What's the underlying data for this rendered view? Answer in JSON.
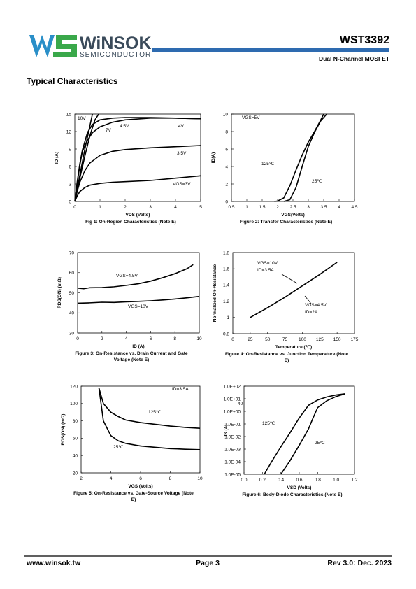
{
  "header": {
    "logo_name": "WiNSOK",
    "logo_sub": "SEMICONDUCTOR",
    "part": "WST3392",
    "subtitle": "Dual N-Channel MOSFET"
  },
  "section_title": "Typical Characteristics",
  "chart_data": [
    {
      "type": "line",
      "title": "Fig 1: On-Region Characteristics (Note E)",
      "x_label": "VDS (Volts)",
      "y_label": "ID (A)",
      "xlim": [
        0,
        5
      ],
      "ylim": [
        0,
        15
      ],
      "xticks": [
        0,
        1,
        2,
        3,
        4,
        5
      ],
      "yticks": [
        0,
        3,
        6,
        9,
        12,
        15
      ],
      "series": [
        {
          "name": "10V",
          "color": "#000000",
          "x": [
            0,
            0.2,
            0.4,
            0.6,
            0.7
          ],
          "values": [
            0,
            4.5,
            9,
            13,
            15
          ]
        },
        {
          "name": "7V",
          "color": "#000000",
          "x": [
            0,
            0.2,
            0.4,
            0.6,
            0.8,
            0.95
          ],
          "values": [
            0,
            4,
            7.8,
            11.3,
            14,
            15
          ]
        },
        {
          "name": "4.5V",
          "color": "#000000",
          "x": [
            0,
            0.1,
            0.2,
            0.3,
            0.5,
            0.7,
            1,
            1.5,
            2,
            3,
            4,
            5
          ],
          "values": [
            0,
            3.5,
            6.5,
            8.8,
            11.8,
            13.2,
            14,
            14.3,
            14.4,
            14.4,
            14.3,
            14.2
          ]
        },
        {
          "name": "4V",
          "color": "#000000",
          "x": [
            0,
            0.1,
            0.2,
            0.3,
            0.5,
            0.7,
            1,
            1.5,
            2,
            3,
            4,
            5
          ],
          "values": [
            0,
            3.3,
            6.2,
            8.6,
            10.5,
            11.8,
            12.8,
            13.6,
            14,
            14.3,
            14.3,
            14.2
          ]
        },
        {
          "name": "3.5V",
          "color": "#000000",
          "x": [
            0,
            0.1,
            0.2,
            0.4,
            0.6,
            1,
            1.5,
            2,
            3,
            4,
            5
          ],
          "values": [
            0,
            1.8,
            3.3,
            5.3,
            6.6,
            7.9,
            8.6,
            8.9,
            9.2,
            9.4,
            9.6
          ]
        },
        {
          "name": "VGS=3V",
          "color": "#000000",
          "x": [
            0,
            0.1,
            0.2,
            0.4,
            0.6,
            1,
            1.5,
            2,
            3,
            4,
            5
          ],
          "values": [
            0,
            1,
            1.7,
            2.4,
            2.8,
            3.1,
            3.3,
            3.4,
            3.6,
            4,
            4.4
          ]
        }
      ]
    },
    {
      "type": "line",
      "title": "Figure 2: Transfer Characteristics (Note E)",
      "x_label": "VGS(Volts)",
      "y_label": "ID(A)",
      "xlim": [
        0.5,
        4.5
      ],
      "ylim": [
        0,
        10
      ],
      "xticks": [
        0.5,
        1,
        1.5,
        2,
        2.5,
        3,
        3.5,
        4,
        4.5
      ],
      "yticks": [
        0,
        2,
        4,
        6,
        8,
        10
      ],
      "annotations": [
        "VGS=5V"
      ],
      "series": [
        {
          "name": "125℃",
          "color": "#000000",
          "x": [
            1.9,
            2,
            2.2,
            2.4,
            2.6,
            2.8,
            3,
            3.2,
            3.4,
            3.5
          ],
          "values": [
            0,
            0.05,
            0.4,
            1.8,
            3.6,
            5.3,
            6.8,
            8,
            9.3,
            10
          ]
        },
        {
          "name": "25℃",
          "color": "#000000",
          "x": [
            2.2,
            2.4,
            2.6,
            2.8,
            3,
            3.2,
            3.4,
            3.6
          ],
          "values": [
            0,
            0.2,
            1.6,
            4,
            6.3,
            7.9,
            9.2,
            10
          ]
        }
      ]
    },
    {
      "type": "line",
      "title": "Figure 3: On-Resistance vs. Drain Current and Gate Voltage (Note E)",
      "x_label": "ID (A)",
      "y_label": "RDS(ON) (mΩ)",
      "xlim": [
        0,
        10
      ],
      "ylim": [
        30,
        70
      ],
      "xticks": [
        0,
        2,
        4,
        6,
        8,
        10
      ],
      "yticks": [
        30,
        40,
        50,
        60,
        70
      ],
      "series": [
        {
          "name": "VGS=4.5V",
          "color": "#000000",
          "x": [
            0,
            0.5,
            1,
            2,
            3,
            4,
            5,
            6,
            7,
            8,
            9,
            9.5
          ],
          "values": [
            52.3,
            52,
            52.5,
            52.6,
            53,
            53.7,
            54.5,
            55.8,
            57.5,
            59.5,
            62,
            64
          ]
        },
        {
          "name": "VGS=10V",
          "color": "#000000",
          "x": [
            0,
            1,
            2,
            3,
            4,
            5,
            6,
            7,
            8,
            9,
            10
          ],
          "values": [
            44.8,
            45,
            45.3,
            45.2,
            45.5,
            45.7,
            46,
            46.4,
            46.9,
            47.5,
            48.2
          ]
        }
      ]
    },
    {
      "type": "line",
      "title": "Figure 4: On-Resistance vs. Junction Temperature (Note E)",
      "x_label": "Temperature (℃)",
      "y_label": "Normalized On-Resistance",
      "xlim": [
        0,
        175
      ],
      "ylim": [
        0.8,
        1.8
      ],
      "xticks": [
        0,
        25,
        50,
        75,
        100,
        125,
        150,
        175
      ],
      "yticks": [
        0.8,
        1,
        1.2,
        1.4,
        1.6,
        1.8
      ],
      "annotations": [
        "VGS=10V",
        "ID=3.5A",
        "VGS=4.5V",
        "ID=2A"
      ],
      "series": [
        {
          "color": "#000000",
          "x": [
            25,
            50,
            75,
            100,
            125,
            150
          ],
          "values": [
            1,
            1.12,
            1.25,
            1.39,
            1.53,
            1.68
          ]
        }
      ]
    },
    {
      "type": "line",
      "title": "Figure 5: On-Resistance vs. Gate-Source Voltage (Note E)",
      "x_label": "VGS (Volts)",
      "y_label": "RDS(ON) (mΩ)",
      "xlim": [
        2,
        10
      ],
      "ylim": [
        20,
        120
      ],
      "xticks": [
        2,
        4,
        6,
        8,
        10
      ],
      "yticks": [
        20,
        40,
        60,
        80,
        100,
        120
      ],
      "annotations": [
        "ID=3.5A"
      ],
      "series": [
        {
          "name": "125℃",
          "color": "#000000",
          "x": [
            3.2,
            3.5,
            4,
            4.5,
            5,
            6,
            7,
            8,
            9,
            10
          ],
          "values": [
            118,
            100,
            90,
            85,
            81,
            78,
            76,
            74,
            72.5,
            71.5
          ]
        },
        {
          "name": "25℃",
          "color": "#000000",
          "x": [
            3.2,
            3.5,
            4,
            4.5,
            5,
            6,
            7,
            8,
            9,
            10
          ],
          "values": [
            118,
            80,
            63,
            57,
            54,
            51,
            49.5,
            48,
            47.3,
            46.8
          ]
        }
      ]
    },
    {
      "type": "line",
      "title": "Figure 6: Body-Diode Characteristics (Note E)",
      "x_label": "VSD (Volts)",
      "y_label": "IS (A)",
      "log_y": true,
      "xlim": [
        0,
        1.2
      ],
      "ylim": [
        1e-05,
        100
      ],
      "xticks": [
        {
          "value": 0,
          "label": "0.0"
        },
        0.2,
        0.4,
        0.6,
        0.8,
        {
          "value": 1,
          "label": "1.0"
        },
        1.2
      ],
      "yticks": [
        {
          "value": 1e-05,
          "label": "1.0E-05"
        },
        {
          "value": 0.0001,
          "label": "1.0E-04"
        },
        {
          "value": 0.001,
          "label": "1.0E-03"
        },
        {
          "value": 0.01,
          "label": "1.0E-02"
        },
        {
          "value": 0.1,
          "label": "1.0E-01"
        },
        {
          "value": 1,
          "label": "1.0E+00"
        },
        {
          "value": 10,
          "label": "1.0E+01"
        },
        {
          "value": 100,
          "label": "1.0E+02"
        }
      ],
      "annotations": [
        "40"
      ],
      "series": [
        {
          "name": "125℃",
          "color": "#000000",
          "x": [
            0.22,
            0.3,
            0.4,
            0.5,
            0.6,
            0.7,
            0.8,
            0.9,
            1,
            1.1
          ],
          "values": [
            1e-05,
            0.0001,
            0.0015,
            0.02,
            0.3,
            3,
            8,
            14,
            20,
            25
          ]
        },
        {
          "name": "25℃",
          "color": "#000000",
          "x": [
            0.4,
            0.5,
            0.6,
            0.7,
            0.75,
            0.8,
            0.9,
            1,
            1.1
          ],
          "values": [
            1e-05,
            0.00012,
            0.002,
            0.04,
            0.3,
            2,
            7,
            15,
            25
          ]
        }
      ]
    }
  ],
  "footer": {
    "website": "www.winsok.tw",
    "page": "Page  3",
    "revision": "Rev 3.0: Dec. 2023"
  }
}
